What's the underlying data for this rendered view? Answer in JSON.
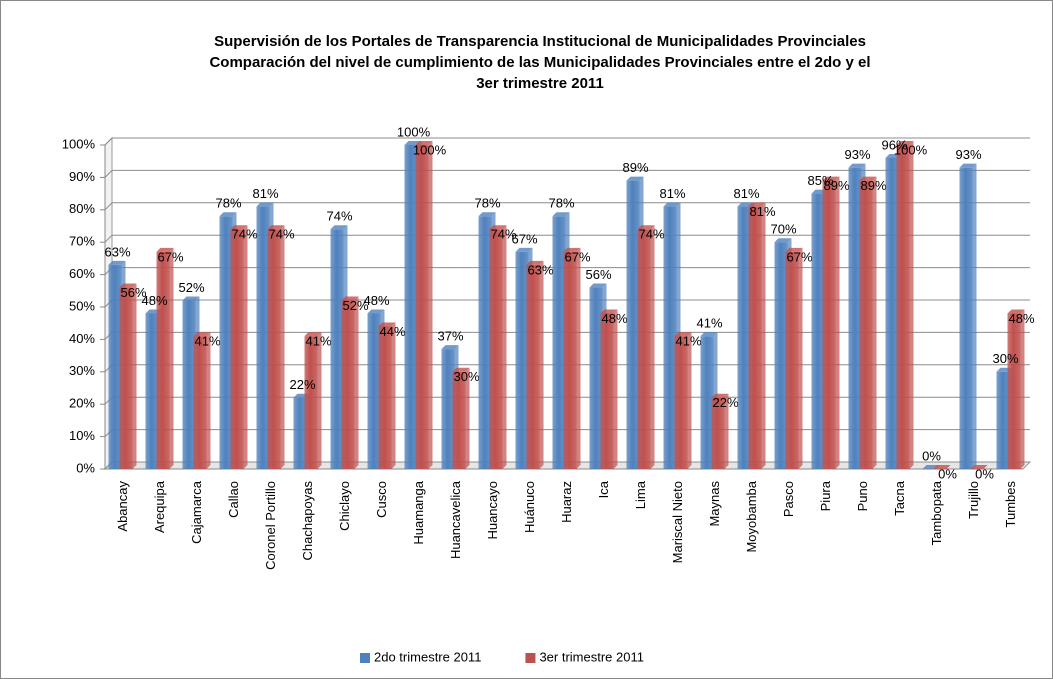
{
  "chart_data": {
    "type": "bar",
    "title": "Supervisión de los Portales de Transparencia Institucional de Municipalidades Provinciales",
    "subtitle": [
      "Comparación del nivel de cumplimiento de las Municipalidades Provinciales entre el 2do y el",
      "3er trimestre 2011"
    ],
    "categories": [
      "Abancay",
      "Arequipa",
      "Cajamarca",
      "Callao",
      "Coronel Portillo",
      "Chachapoyas",
      "Chiclayo",
      "Cusco",
      "Huamanga",
      "Huancavelica",
      "Huancayo",
      "Huánuco",
      "Huaraz",
      "Ica",
      "Lima",
      "Mariscal Nieto",
      "Maynas",
      "Moyobamba",
      "Pasco",
      "Piura",
      "Puno",
      "Tacna",
      "Tambopata",
      "Trujillo",
      "Tumbes"
    ],
    "series": [
      {
        "name": "2do trimestre 2011",
        "color": "#4f81bd",
        "values": [
          63,
          48,
          52,
          78,
          81,
          22,
          74,
          48,
          100,
          37,
          78,
          67,
          78,
          56,
          89,
          81,
          41,
          81,
          70,
          85,
          93,
          96,
          0,
          93,
          30
        ],
        "value_labels": [
          "63%",
          "48%",
          "52%",
          "78%",
          "81%",
          "22%",
          "74%",
          "48%",
          "100%",
          "37%",
          "78%",
          "67%",
          "78%",
          "56%",
          "89%",
          "81%",
          "41%",
          "81%",
          "70%",
          "85%",
          "93%",
          "96%",
          "0%",
          "93%",
          "30%"
        ]
      },
      {
        "name": "3er trimestre 2011",
        "color": "#c0504d",
        "values": [
          56,
          67,
          41,
          74,
          74,
          41,
          52,
          44,
          100,
          30,
          74,
          63,
          67,
          48,
          74,
          41,
          22,
          81,
          67,
          89,
          89,
          100,
          0,
          0,
          48
        ],
        "value_labels": [
          "56%",
          "67%",
          "41%",
          "74%",
          "74%",
          "41%",
          "52%",
          "44%",
          "100%",
          "30%",
          "74%",
          "63%",
          "67%",
          "48%",
          "74%",
          "41%",
          "22%",
          "81%",
          "67%",
          "89%",
          "89%",
          "100%",
          "0%",
          "0%",
          "48%"
        ]
      }
    ],
    "ylim": [
      0,
      100
    ],
    "yticks": [
      {
        "value": 0,
        "label": "0%"
      },
      {
        "value": 10,
        "label": "10%"
      },
      {
        "value": 20,
        "label": "20%"
      },
      {
        "value": 30,
        "label": "30%"
      },
      {
        "value": 40,
        "label": "40%"
      },
      {
        "value": 50,
        "label": "50%"
      },
      {
        "value": 60,
        "label": "60%"
      },
      {
        "value": 70,
        "label": "70%"
      },
      {
        "value": 80,
        "label": "80%"
      },
      {
        "value": 90,
        "label": "90%"
      },
      {
        "value": 100,
        "label": "100%"
      }
    ],
    "grid": true,
    "legend": "bottom"
  }
}
